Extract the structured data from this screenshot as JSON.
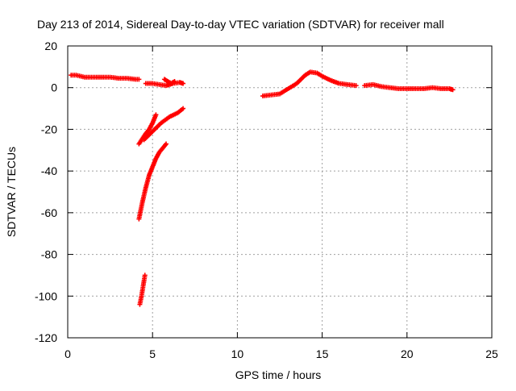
{
  "chart_data": {
    "type": "scatter",
    "title": "Day 213 of 2014, Sidereal Day-to-day VTEC variation (SDTVAR) for receiver mall",
    "xlabel": "GPS time / hours",
    "ylabel": "SDTVAR / TECUs",
    "xlim": [
      0,
      25
    ],
    "ylim": [
      -120,
      20
    ],
    "xticks": [
      0,
      5,
      10,
      15,
      20,
      25
    ],
    "yticks": [
      20,
      0,
      -20,
      -40,
      -60,
      -80,
      -100,
      -120
    ],
    "grid": true,
    "marker": "plus",
    "series": [
      {
        "name": "SDTVAR",
        "color": "#ff0000",
        "segments": [
          {
            "x": [
              0.2,
              0.5,
              1.0,
              1.5,
              2.0,
              2.5,
              3.0,
              3.5,
              4.0,
              4.2
            ],
            "y": [
              6,
              6,
              5,
              5,
              5,
              5,
              4.5,
              4.5,
              4,
              4
            ]
          },
          {
            "x": [
              4.6,
              5.0,
              5.4,
              5.8,
              6.2,
              6.6,
              6.8
            ],
            "y": [
              2,
              2,
              1.5,
              1,
              2,
              2.5,
              2
            ]
          },
          {
            "x": [
              5.7,
              5.9,
              6.1,
              6.3
            ],
            "y": [
              4,
              3,
              2,
              3
            ]
          },
          {
            "x": [
              4.2,
              4.4,
              4.6,
              4.8,
              5.0,
              5.2
            ],
            "y": [
              -27,
              -24.5,
              -22,
              -20,
              -17,
              -13
            ]
          },
          {
            "x": [
              4.5,
              5.0,
              5.5,
              6.0,
              6.5,
              6.8
            ],
            "y": [
              -25,
              -21,
              -17,
              -14,
              -12,
              -10
            ]
          },
          {
            "x": [
              4.2,
              4.4,
              4.6,
              4.8,
              5.0,
              5.2,
              5.4,
              5.6,
              5.8
            ],
            "y": [
              -63,
              -55,
              -48,
              -42,
              -38,
              -34,
              -31,
              -29,
              -27
            ]
          },
          {
            "x": [
              4.25,
              4.35,
              4.45,
              4.55
            ],
            "y": [
              -104,
              -100,
              -95,
              -90
            ]
          },
          {
            "x": [
              11.5,
              12.0,
              12.5,
              13.0,
              13.5,
              14.0,
              14.3,
              14.7,
              15.0,
              15.5,
              16.0,
              16.5,
              17.0
            ],
            "y": [
              -4,
              -3.5,
              -3,
              -0.5,
              2,
              6,
              7.5,
              7,
              5.5,
              3.5,
              2,
              1.5,
              1
            ]
          },
          {
            "x": [
              17.5,
              18.0,
              18.5,
              19.0,
              19.5,
              20.0,
              20.5,
              21.0,
              21.5,
              22.0,
              22.5,
              22.7
            ],
            "y": [
              1,
              1.5,
              0.5,
              0,
              -0.5,
              -0.5,
              -0.5,
              -0.5,
              0,
              -0.5,
              -0.5,
              -1
            ]
          }
        ]
      }
    ]
  }
}
